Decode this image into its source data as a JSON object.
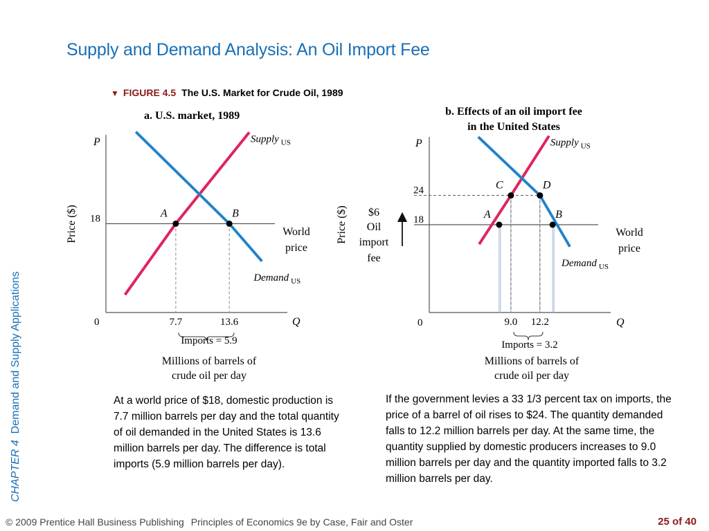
{
  "slide": {
    "title": "Supply and Demand Analysis: An Oil Import Fee",
    "side_label": {
      "chapter": "CHAPTER 4",
      "text": "Demand and Supply Applications"
    },
    "figure": {
      "number": "FIGURE 4.5",
      "caption": "The U.S. Market for Crude Oil, 1989"
    },
    "para_a": "At a world price of $18, domestic production is 7.7 million barrels per day and the total quantity of oil demanded in the United States is 13.6 million barrels per day. The difference is total imports (5.9 million barrels per day).",
    "para_b": "If the government levies a 33 1/3 percent tax on imports, the price of a barrel of oil rises to $24. The quantity demanded falls to 12.2 million barrels per day. At the same time, the quantity supplied by domestic producers increases to 9.0 million barrels per day and the quantity imported falls to 3.2 million barrels per day.",
    "footer": {
      "copyright": "© 2009 Prentice Hall Business Publishing",
      "book": "Principles of Economics 9e by Case, Fair and Oster",
      "page": "25 of 40"
    }
  },
  "colors": {
    "title": "#1a6fb5",
    "supply": "#e0245e",
    "demand": "#2a8fd6",
    "figure_number": "#8b1a1a"
  },
  "chart_data": [
    {
      "type": "line",
      "title": "a. U.S. market, 1989",
      "ylabel": "Price ($)",
      "y_axis_letter": "P",
      "x_axis_letter": "Q",
      "origin_label": "0",
      "xlabel_lines": [
        "Millions of barrels of",
        "crude oil per day"
      ],
      "xlim": [
        0,
        20
      ],
      "ylim": [
        0,
        36
      ],
      "series": [
        {
          "name": "Supply",
          "subscript": "US",
          "points": [
            [
              2.1,
              3.6
            ],
            [
              7.7,
              18
            ],
            [
              15.8,
              36.5
            ]
          ]
        },
        {
          "name": "Demand",
          "subscript": "US",
          "points": [
            [
              3.3,
              36.6
            ],
            [
              13.6,
              18
            ],
            [
              17.2,
              10.4
            ]
          ]
        }
      ],
      "price_lines": [
        {
          "value": 18,
          "label": "18"
        }
      ],
      "world_price_label": [
        "World",
        "price"
      ],
      "points": [
        {
          "label": "A",
          "x": 7.7,
          "y": 18
        },
        {
          "label": "B",
          "x": 13.6,
          "y": 18
        }
      ],
      "x_ticks": [
        {
          "value": 7.7,
          "label": "7.7"
        },
        {
          "value": 13.6,
          "label": "13.6"
        }
      ],
      "imports_label": "Imports = 5.9"
    },
    {
      "type": "line",
      "title_lines": [
        "b. Effects of an oil import fee",
        "in the United States"
      ],
      "ylabel": "Price ($)",
      "y_axis_letter": "P",
      "x_axis_letter": "Q",
      "origin_label": "0",
      "xlabel_lines": [
        "Millions of barrels of",
        "crude oil per day"
      ],
      "xlim": [
        0,
        20
      ],
      "ylim": [
        0,
        36
      ],
      "series": [
        {
          "name": "Supply",
          "subscript": "US",
          "points": [
            [
              5.5,
              14
            ],
            [
              9.0,
              24
            ],
            [
              13.2,
              36.2
            ]
          ]
        },
        {
          "name": "Demand",
          "subscript": "US",
          "points": [
            [
              5.4,
              36.0
            ],
            [
              12.2,
              24
            ],
            [
              15.5,
              13.5
            ]
          ]
        }
      ],
      "price_lines": [
        {
          "value": 24,
          "label": "24"
        },
        {
          "value": 18,
          "label": "18"
        }
      ],
      "world_price_label": [
        "World",
        "price"
      ],
      "fee_label": [
        "$6",
        "Oil",
        "import",
        "fee"
      ],
      "points": [
        {
          "label": "C",
          "x": 9.0,
          "y": 24
        },
        {
          "label": "D",
          "x": 12.2,
          "y": 24
        },
        {
          "label": "A",
          "x": 7.7,
          "y": 18
        },
        {
          "label": "B",
          "x": 13.6,
          "y": 18
        }
      ],
      "x_ticks": [
        {
          "value": 9.0,
          "label": "9.0"
        },
        {
          "value": 12.2,
          "label": "12.2"
        }
      ],
      "imports_label": "Imports = 3.2"
    }
  ]
}
